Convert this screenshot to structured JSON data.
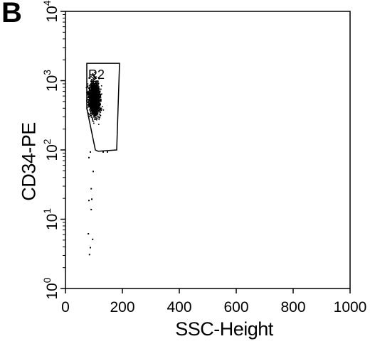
{
  "panel_label": "B",
  "chart_data": {
    "type": "scatter",
    "title": "",
    "xlabel": "SSC-Height",
    "ylabel": "CD34-PE",
    "xlim": [
      0,
      1000
    ],
    "ylim_decades": [
      0,
      4
    ],
    "y_scale": "log",
    "x_ticks": [
      0,
      200,
      400,
      600,
      800,
      1000
    ],
    "x_tick_labels": [
      "0",
      "200",
      "400",
      "600",
      "800",
      "1000"
    ],
    "y_ticks": [
      0,
      1,
      2,
      3,
      4
    ],
    "y_tick_labels": [
      {
        "base": "10",
        "exp": "0"
      },
      {
        "base": "10",
        "exp": "1"
      },
      {
        "base": "10",
        "exp": "2"
      },
      {
        "base": "10",
        "exp": "3"
      },
      {
        "base": "10",
        "exp": "4"
      }
    ],
    "grid": false,
    "gate": {
      "label": "R2",
      "polygon": [
        [
          75,
          3.25
        ],
        [
          190,
          3.25
        ],
        [
          180,
          2.0
        ],
        [
          115,
          1.98
        ],
        [
          105,
          2.0
        ],
        [
          75,
          2.6
        ]
      ]
    },
    "cluster": {
      "center_ssc": 100,
      "center_log": 2.75,
      "approx_events": 1800,
      "ssc_spread": 17,
      "log_spread": 0.2
    },
    "outliers": [
      {
        "ssc": 85,
        "log": 1.98
      },
      {
        "ssc": 130,
        "log": 1.98
      },
      {
        "ssc": 145,
        "log": 1.98
      },
      {
        "ssc": 80,
        "log": 1.9
      },
      {
        "ssc": 95,
        "log": 1.7
      },
      {
        "ssc": 88,
        "log": 1.45
      },
      {
        "ssc": 90,
        "log": 1.3
      },
      {
        "ssc": 80,
        "log": 1.28
      },
      {
        "ssc": 88,
        "log": 1.15
      },
      {
        "ssc": 78,
        "log": 0.8
      },
      {
        "ssc": 93,
        "log": 0.72
      },
      {
        "ssc": 85,
        "log": 0.6
      },
      {
        "ssc": 82,
        "log": 0.5
      }
    ]
  }
}
